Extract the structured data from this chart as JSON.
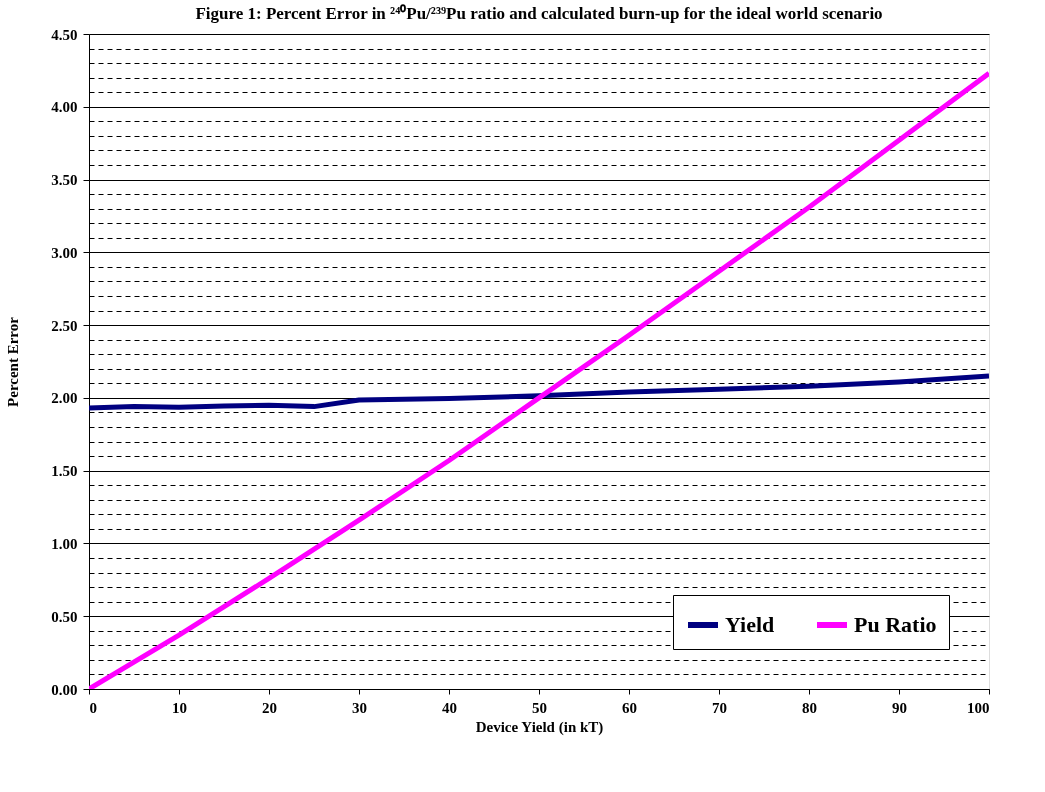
{
  "chart_data": {
    "type": "line",
    "title": "Figure 1: Percent Error in ²⁴⁰Pu/²³⁹Pu ratio and calculated burn-up for the ideal world scenario",
    "xlabel": "Device Yield (in kT)",
    "ylabel": "Percent Error",
    "xlim": [
      0,
      100
    ],
    "xticks": [
      0,
      10,
      20,
      30,
      40,
      50,
      60,
      70,
      80,
      90,
      100
    ],
    "ylim": [
      0,
      4.5
    ],
    "yticks": [
      {
        "value": 0,
        "label": "0.00"
      },
      {
        "value": 0.1,
        "label": null
      },
      {
        "value": 0.2,
        "label": null
      },
      {
        "value": 0.3,
        "label": null
      },
      {
        "value": 0.4,
        "label": null
      },
      {
        "value": 0.5,
        "label": "0.50"
      },
      {
        "value": 0.6,
        "label": null
      },
      {
        "value": 0.7,
        "label": null
      },
      {
        "value": 0.8,
        "label": null
      },
      {
        "value": 0.9,
        "label": null
      },
      {
        "value": 1.0,
        "label": "1.00"
      },
      {
        "value": 1.1,
        "label": null
      },
      {
        "value": 1.2,
        "label": null
      },
      {
        "value": 1.3,
        "label": null
      },
      {
        "value": 1.4,
        "label": null
      },
      {
        "value": 1.5,
        "label": "1.50"
      },
      {
        "value": 1.6,
        "label": null
      },
      {
        "value": 1.7,
        "label": null
      },
      {
        "value": 1.8,
        "label": null
      },
      {
        "value": 1.9,
        "label": null
      },
      {
        "value": 2.0,
        "label": "2.00"
      },
      {
        "value": 2.1,
        "label": null
      },
      {
        "value": 2.2,
        "label": null
      },
      {
        "value": 2.3,
        "label": null
      },
      {
        "value": 2.4,
        "label": null
      },
      {
        "value": 2.5,
        "label": "2.50"
      },
      {
        "value": 2.6,
        "label": null
      },
      {
        "value": 2.7,
        "label": null
      },
      {
        "value": 2.8,
        "label": null
      },
      {
        "value": 2.9,
        "label": null
      },
      {
        "value": 3.0,
        "label": "3.00"
      },
      {
        "value": 3.1,
        "label": null
      },
      {
        "value": 3.2,
        "label": null
      },
      {
        "value": 3.3,
        "label": null
      },
      {
        "value": 3.4,
        "label": null
      },
      {
        "value": 3.5,
        "label": "3.50"
      },
      {
        "value": 3.6,
        "label": null
      },
      {
        "value": 3.7,
        "label": null
      },
      {
        "value": 3.8,
        "label": null
      },
      {
        "value": 3.9,
        "label": null
      },
      {
        "value": 4.0,
        "label": "4.00"
      },
      {
        "value": 4.1,
        "label": null
      },
      {
        "value": 4.2,
        "label": null
      },
      {
        "value": 4.3,
        "label": null
      },
      {
        "value": 4.4,
        "label": null
      },
      {
        "value": 4.5,
        "label": "4.50"
      }
    ],
    "grid": "y",
    "legend": "bottom right",
    "marker": "none",
    "line_style": "solid",
    "series": [
      {
        "name": "Yield",
        "color": "#000080",
        "x": [
          0,
          5,
          10,
          15,
          20,
          25,
          30,
          40,
          50,
          60,
          70,
          80,
          90,
          100
        ],
        "values": [
          1.93,
          1.94,
          1.935,
          1.945,
          1.95,
          1.94,
          1.985,
          1.995,
          2.015,
          2.04,
          2.06,
          2.08,
          2.11,
          2.15
        ]
      },
      {
        "name": "Pu Ratio",
        "color": "#ff00ff",
        "x": [
          0,
          10,
          20,
          30,
          40,
          50,
          60,
          70,
          80,
          90,
          100
        ],
        "values": [
          0,
          0.37,
          0.76,
          1.16,
          1.57,
          2.0,
          2.43,
          2.87,
          3.31,
          3.77,
          4.23
        ]
      }
    ]
  }
}
